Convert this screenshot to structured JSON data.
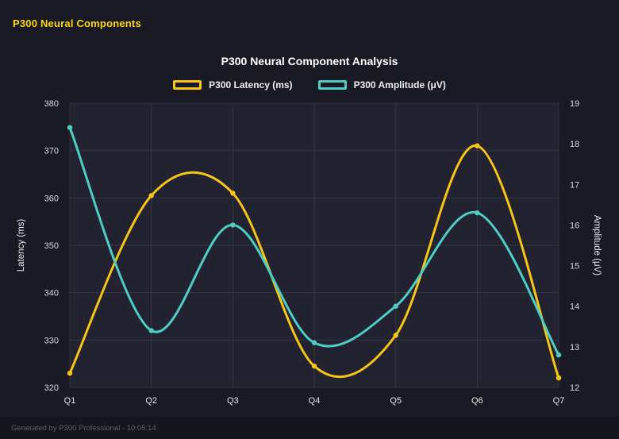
{
  "header": {
    "title": "P300 Neural Components"
  },
  "footer": {
    "text": "Generated by P300 Professional - 10:05:14"
  },
  "theme": {
    "page_bg": "#1a1a24",
    "plot_bg": "#222230",
    "grid": "rgba(255,255,255,0.09)",
    "accent_yellow": "#f5c518",
    "accent_teal": "#4ecdc4",
    "text": "#d6d6de",
    "muted": "#5f5f6a"
  },
  "chart_data": {
    "type": "line",
    "title": "P300 Neural Component Analysis",
    "categories": [
      "Q1",
      "Q2",
      "Q3",
      "Q4",
      "Q5",
      "Q6",
      "Q7"
    ],
    "series": [
      {
        "name": "P300 Latency (ms)",
        "axis": "left",
        "color": "#f5c518",
        "values": [
          323,
          360.5,
          361,
          324.5,
          331,
          371,
          322
        ]
      },
      {
        "name": "P300 Amplitude (μV)",
        "axis": "right",
        "color": "#4ecdc4",
        "values": [
          18.4,
          13.4,
          16.0,
          13.1,
          14.0,
          16.3,
          12.8
        ]
      }
    ],
    "y_left": {
      "label": "Latency (ms)",
      "min": 320,
      "max": 380,
      "ticks": [
        320,
        330,
        340,
        350,
        360,
        370,
        380
      ]
    },
    "y_right": {
      "label": "Amplitude (μV)",
      "min": 12,
      "max": 19,
      "ticks": [
        12,
        13,
        14,
        15,
        16,
        17,
        18,
        19
      ]
    },
    "grid": true,
    "legend_position": "top",
    "smoothing": true
  }
}
